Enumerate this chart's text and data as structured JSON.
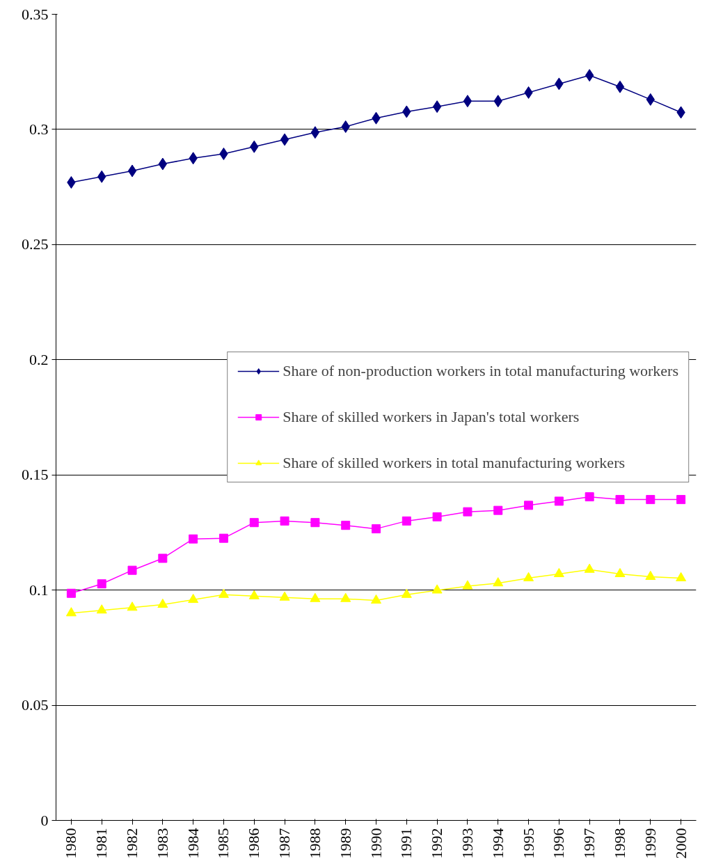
{
  "chart_data": {
    "type": "line",
    "categories": [
      "1980",
      "1981",
      "1982",
      "1983",
      "1984",
      "1985",
      "1986",
      "1987",
      "1988",
      "1989",
      "1990",
      "1991",
      "1992",
      "1993",
      "1994",
      "1995",
      "1996",
      "1997",
      "1998",
      "1999",
      "2000"
    ],
    "series": [
      {
        "name": "Share of non-production workers in total manufacturing workers",
        "color": "#000080",
        "marker": "diamond",
        "values": [
          0.277,
          0.2795,
          0.282,
          0.285,
          0.2875,
          0.2894,
          0.2925,
          0.2956,
          0.2987,
          0.3012,
          0.3049,
          0.3077,
          0.3099,
          0.3123,
          0.3123,
          0.316,
          0.3198,
          0.3235,
          0.3185,
          0.313,
          0.3074
        ]
      },
      {
        "name": "Share of skilled workers in Japan's total workers",
        "color": "#ff00ff",
        "marker": "square",
        "values": [
          0.0986,
          0.1027,
          0.1086,
          0.1138,
          0.1222,
          0.1225,
          0.1293,
          0.13,
          0.1293,
          0.1281,
          0.1266,
          0.13,
          0.1318,
          0.134,
          0.1346,
          0.1368,
          0.1386,
          0.1405,
          0.1393,
          0.1393,
          0.1393
        ]
      },
      {
        "name": "Share of skilled workers in total manufacturing workers",
        "color": "#ffff00",
        "marker": "triangle",
        "values": [
          0.09,
          0.0912,
          0.0924,
          0.0937,
          0.0958,
          0.098,
          0.0974,
          0.0968,
          0.0962,
          0.0962,
          0.0955,
          0.098,
          0.0999,
          0.1017,
          0.103,
          0.1052,
          0.107,
          0.1089,
          0.107,
          0.1058,
          0.1052
        ]
      }
    ],
    "ylim": [
      0,
      0.35
    ],
    "yticks": [
      0,
      0.05,
      0.1,
      0.15,
      0.2,
      0.25,
      0.3,
      0.35
    ],
    "grid": "y",
    "legend": "right",
    "line_style": "solid"
  }
}
